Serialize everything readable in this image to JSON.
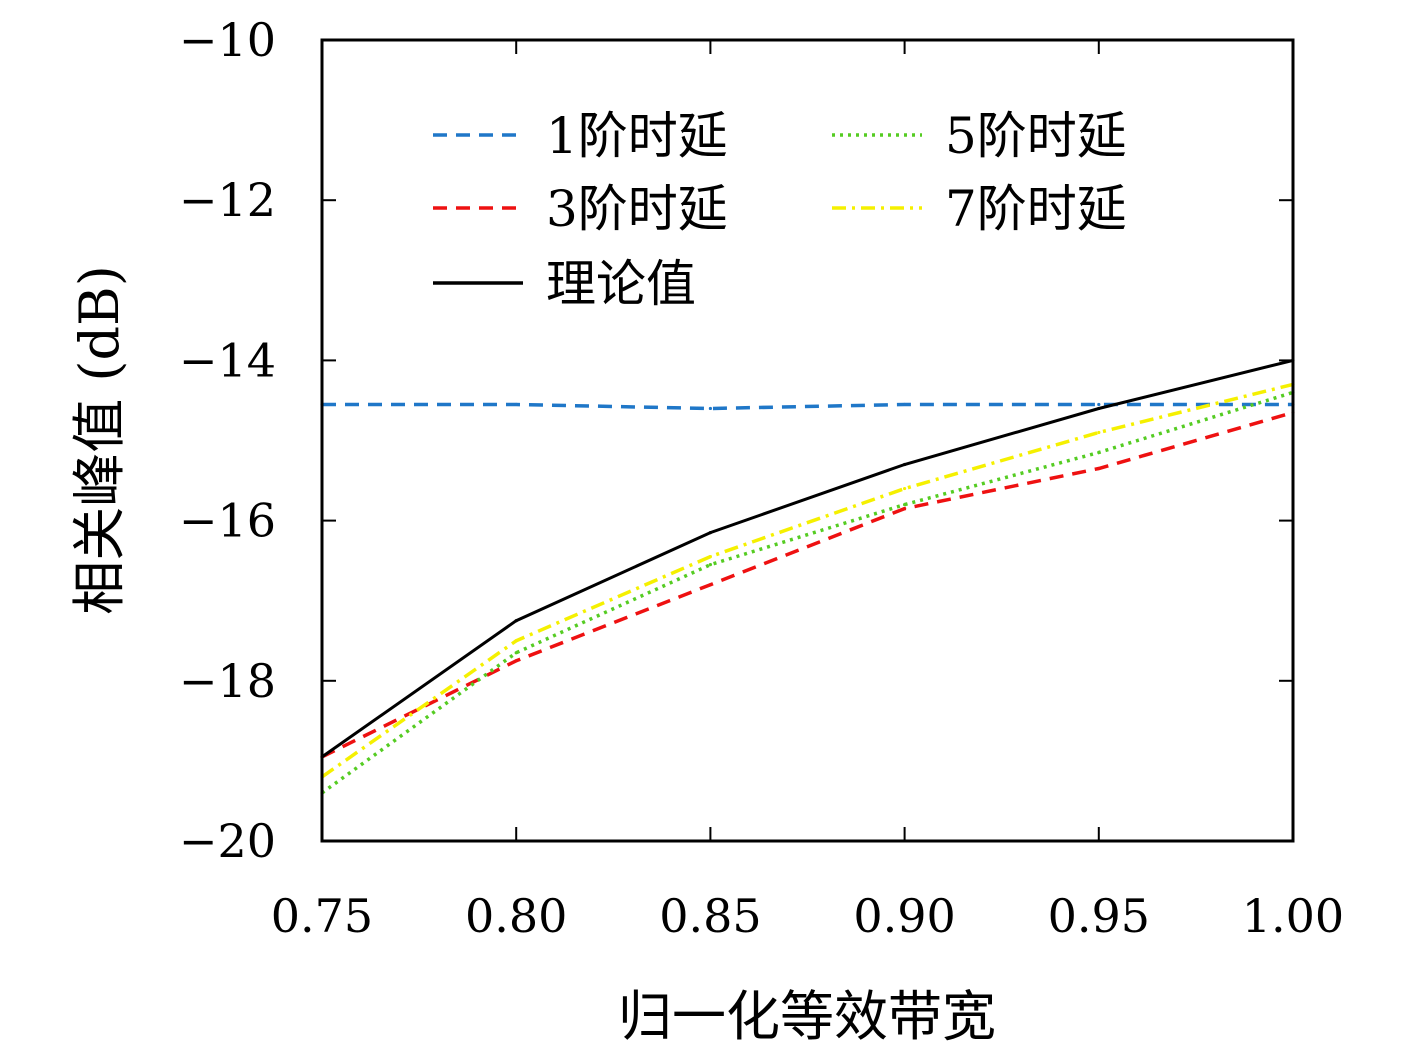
{
  "chart_data": {
    "type": "line",
    "title": "",
    "xlabel": "归一化等效带宽",
    "ylabel": "相关峰值 (dB)",
    "x": [
      0.75,
      0.8,
      0.85,
      0.9,
      0.95,
      1.0
    ],
    "x_tick_labels": [
      "0.75",
      "0.80",
      "0.85",
      "0.90",
      "0.95",
      "1.00"
    ],
    "y_ticks": [
      -20,
      -18,
      -16,
      -14,
      -12,
      -10
    ],
    "y_tick_labels": [
      "−20",
      "−18",
      "−16",
      "−14",
      "−12",
      "−10"
    ],
    "xlim": [
      0.75,
      1.0
    ],
    "ylim": [
      -20,
      -10
    ],
    "grid": false,
    "legend_position": "top",
    "series": [
      {
        "name": "1阶时延",
        "color": "#1f77c8",
        "dash": "dashed",
        "values": [
          -14.55,
          -14.55,
          -14.6,
          -14.55,
          -14.55,
          -14.55
        ]
      },
      {
        "name": "3阶时延",
        "color": "#ee1111",
        "dash": "dashed",
        "values": [
          -18.95,
          -17.75,
          -16.8,
          -15.85,
          -15.35,
          -14.65
        ]
      },
      {
        "name": "理论值",
        "color": "#000000",
        "dash": "solid",
        "values": [
          -18.95,
          -17.25,
          -16.15,
          -15.3,
          -14.6,
          -14.0
        ]
      },
      {
        "name": "5阶时延",
        "color": "#55cc22",
        "dash": "dotted",
        "values": [
          -19.4,
          -17.65,
          -16.55,
          -15.8,
          -15.15,
          -14.4
        ]
      },
      {
        "name": "7阶时延",
        "color": "#f5f000",
        "dash": "dashdot",
        "values": [
          -19.2,
          -17.5,
          -16.45,
          -15.6,
          -14.9,
          -14.3
        ]
      }
    ]
  }
}
